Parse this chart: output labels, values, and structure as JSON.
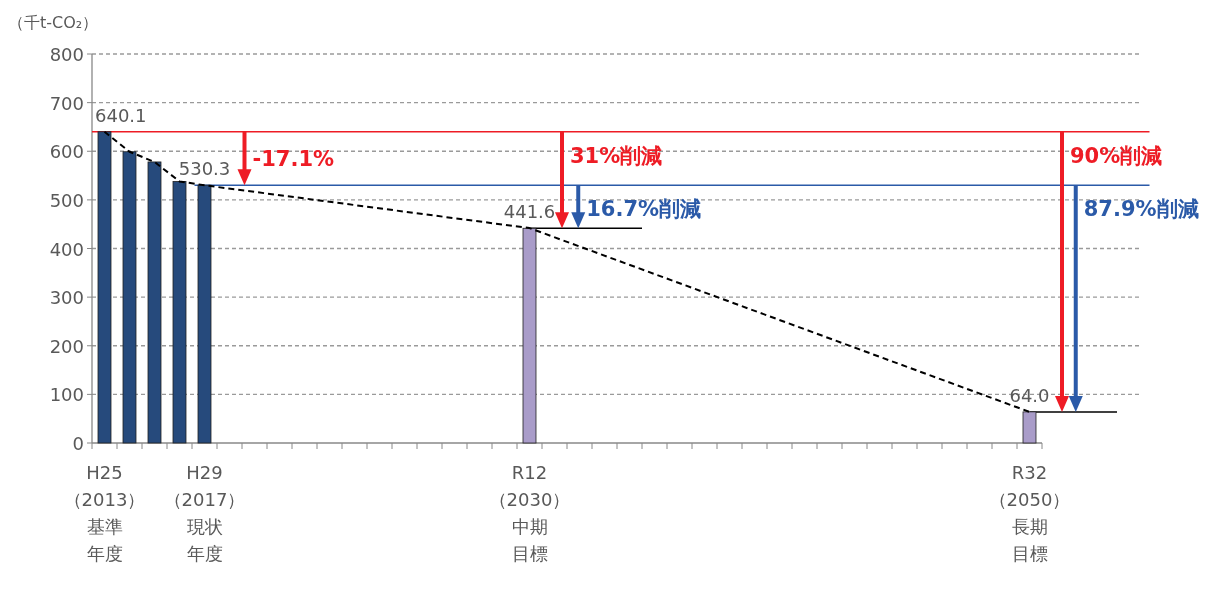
{
  "chart_data": {
    "type": "bar",
    "ylabel": "（千t-CO₂）",
    "categories": [
      "H25（2013）基準年度",
      null,
      null,
      null,
      "H29（2017）現状年度",
      null,
      null,
      null,
      null,
      null,
      null,
      null,
      null,
      null,
      null,
      null,
      null,
      "R12（2030）中期目標",
      null,
      null,
      null,
      null,
      null,
      null,
      null,
      null,
      null,
      null,
      null,
      null,
      null,
      null,
      null,
      null,
      null,
      null,
      null,
      "R32（2050）長期目標",
      null,
      null,
      null,
      null
    ],
    "series": [
      {
        "type": "bar",
        "colors": [
          "#264a7c",
          "#264a7c",
          "#264a7c",
          "#264a7c",
          "#264a7c",
          null,
          null,
          null,
          null,
          null,
          null,
          null,
          null,
          null,
          null,
          null,
          null,
          "#a99cc9",
          null,
          null,
          null,
          null,
          null,
          null,
          null,
          null,
          null,
          null,
          null,
          null,
          null,
          null,
          null,
          null,
          null,
          null,
          null,
          "#a99cc9",
          null,
          null,
          null,
          null
        ],
        "values": [
          640.1,
          599,
          578,
          538,
          530.3,
          null,
          null,
          null,
          null,
          null,
          null,
          null,
          null,
          null,
          null,
          null,
          null,
          441.6,
          null,
          null,
          null,
          null,
          null,
          null,
          null,
          null,
          null,
          null,
          null,
          null,
          null,
          null,
          null,
          null,
          null,
          null,
          null,
          64.0,
          null,
          null,
          null,
          null
        ],
        "value_labels": [
          "640.1",
          null,
          null,
          null,
          "530.3",
          null,
          null,
          null,
          null,
          null,
          null,
          null,
          null,
          null,
          null,
          null,
          null,
          "441.6",
          null,
          null,
          null,
          null,
          null,
          null,
          null,
          null,
          null,
          null,
          null,
          null,
          null,
          null,
          null,
          null,
          null,
          null,
          null,
          "64.0",
          null,
          null,
          null,
          null
        ]
      },
      {
        "type": "line",
        "color": "#000000",
        "line_style": "dashed",
        "marker": "none",
        "values": [
          640,
          599,
          578,
          538,
          530,
          null,
          null,
          null,
          null,
          null,
          null,
          null,
          null,
          null,
          null,
          null,
          null,
          442,
          null,
          null,
          null,
          null,
          null,
          null,
          null,
          null,
          null,
          null,
          null,
          null,
          null,
          null,
          null,
          null,
          null,
          null,
          null,
          64,
          null,
          null,
          null,
          null
        ]
      }
    ],
    "ylim": [
      0,
      800
    ],
    "yticks": [
      0,
      100,
      200,
      300,
      400,
      500,
      600,
      700,
      800
    ],
    "grid": "y",
    "ref_lines": [
      {
        "axis": "y",
        "value": 640.1,
        "color": "#ee1c25"
      },
      {
        "axis": "y",
        "value": 530.3,
        "color": "#2b5aa8"
      },
      {
        "axis": "y",
        "value": 441.6,
        "color": "#000000"
      },
      {
        "axis": "y",
        "value": 64.0,
        "color": "#000000"
      }
    ],
    "annotations": [
      {
        "text": "-17.1%",
        "y": 530.3
      },
      "31%削減",
      {
        "text": "16.7%削減",
        "x": "R12（2030）中期目標",
        "y": 441.6
      },
      "90%削減",
      "87.9%削減"
    ]
  }
}
